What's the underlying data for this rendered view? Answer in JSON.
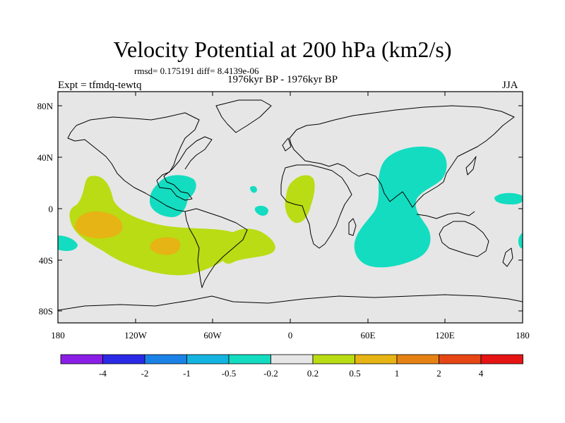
{
  "title": "Velocity Potential at 200 hPa (km2/s)",
  "stats_line": "rmsd= 0.175191 diff= 8.4139e-06",
  "period": "1976kyr BP - 1976kyr BP",
  "experiment": "Expt = tfmdq-tewtq",
  "season": "JJA",
  "map": {
    "lat_ticks": [
      "80N",
      "40N",
      "0",
      "40S",
      "80S"
    ],
    "lon_ticks": [
      "180",
      "120W",
      "60W",
      "0",
      "60E",
      "120E",
      "180"
    ],
    "ocean_color": "#e6e6e6",
    "coast_color": "#000000"
  },
  "colorbar": {
    "colors": [
      "#8a1ee6",
      "#2a2ae6",
      "#1a82e6",
      "#14b4e0",
      "#14dcc0",
      "#e6e6e6",
      "#b9dc14",
      "#e6b414",
      "#e68214",
      "#e64614",
      "#e61414"
    ],
    "labels": [
      "-4",
      "-2",
      "-1",
      "-0.5",
      "-0.2",
      "0.2",
      "0.5",
      "1",
      "2",
      "4"
    ]
  },
  "anomaly_fields": [
    {
      "name": "central-pacific-positive",
      "level": "0.2-0.5"
    },
    {
      "name": "east-pacific-core-a",
      "level": "0.5-1"
    },
    {
      "name": "east-pacific-core-b",
      "level": "0.5-1"
    },
    {
      "name": "south-atlantic-positive",
      "level": "0.2-0.5"
    },
    {
      "name": "west-africa-positive",
      "level": "0.2-0.5"
    },
    {
      "name": "caribbean-negative",
      "level": "-0.5--0.2"
    },
    {
      "name": "indian-ocean-negative",
      "level": "-0.5--0.2"
    },
    {
      "name": "west-pacific-negative",
      "level": "-0.5--0.2"
    }
  ]
}
